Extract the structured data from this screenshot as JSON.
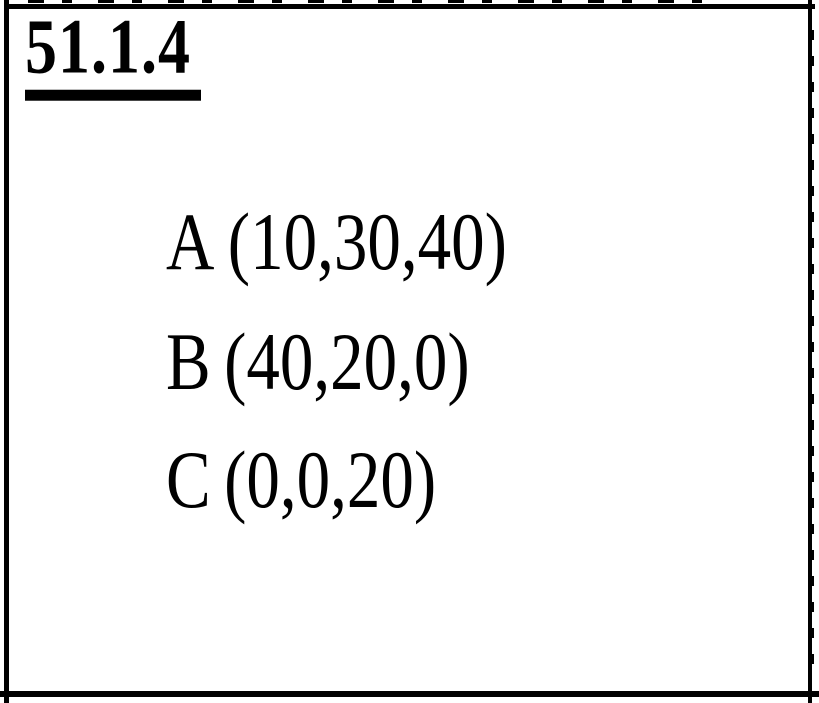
{
  "page": {
    "paper_color": "#ffffff",
    "ink_color": "#000000"
  },
  "document": {
    "section_number": "51.1.4",
    "points": [
      {
        "label": "A",
        "coordinates": "(10,30,40)"
      },
      {
        "label": "B",
        "coordinates": "(40,20,0)"
      },
      {
        "label": "C",
        "coordinates": "(0,0,20)"
      }
    ]
  }
}
